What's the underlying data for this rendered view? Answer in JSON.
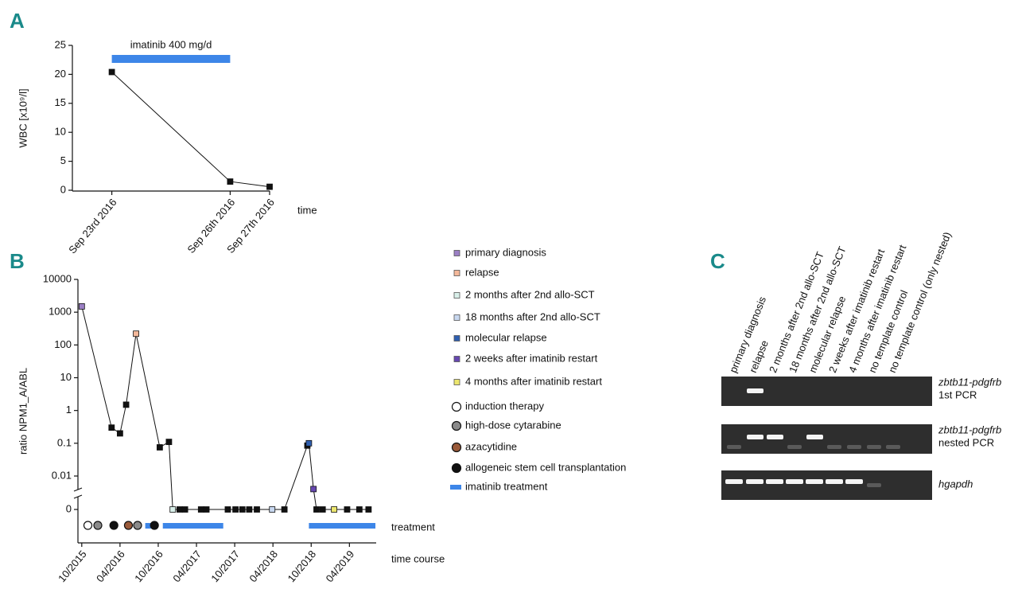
{
  "chart_data": [
    {
      "panel": "A",
      "type": "line",
      "ylabel": "WBC [x10⁹/l]",
      "xlabel": "time",
      "x": [
        "2016-09-23",
        "2016-09-26",
        "2016-09-27"
      ],
      "series": [
        {
          "color": "#111111",
          "values": [
            20.4,
            1.5,
            0.6
          ]
        }
      ],
      "xlim": [
        "2016-09-22",
        "2016-09-27"
      ],
      "xticks": [
        {
          "value": "2016-09-23",
          "label": "Sep 23rd 2016"
        },
        {
          "value": "2016-09-26",
          "label": "Sep 26th 2016"
        },
        {
          "value": "2016-09-27",
          "label": "Sep 27th 2016"
        }
      ],
      "ylim": [
        0,
        25
      ],
      "yticks": [
        0,
        5,
        10,
        15,
        20,
        25
      ],
      "treatment_bar": {
        "label": "imatinib 400 mg/d",
        "start": "2016-09-23",
        "end": "2016-09-26",
        "color": "#3d86e8"
      }
    },
    {
      "panel": "B",
      "type": "line",
      "yscale": "log",
      "ylabel": "ratio NPM1_A/ABL",
      "treatment_label": "treatment",
      "xlabel": "time course",
      "x": [
        2015.75,
        2016.14,
        2016.25,
        2016.33,
        2016.46,
        2016.77,
        2016.89,
        2016.94,
        2017.03,
        2017.1,
        2017.31,
        2017.38,
        2017.66,
        2017.76,
        2017.85,
        2017.94,
        2018.04,
        2018.24,
        2018.4,
        2018.7,
        2018.72,
        2018.78,
        2018.82,
        2018.9,
        2019.05,
        2019.22,
        2019.38,
        2019.5
      ],
      "series": [
        {
          "color": "#111111",
          "values": [
            1500,
            0.3,
            0.2,
            1.5,
            220,
            0.075,
            0.11,
            0,
            0,
            0,
            0,
            0,
            0,
            0,
            0,
            0,
            0,
            0,
            0,
            0.085,
            0.1,
            0.004,
            0,
            0,
            0,
            0,
            0,
            0
          ],
          "marker_colors": [
            "#9b7fc4",
            "#111",
            "#111",
            "#111",
            "#f4b89a",
            "#111",
            "#111",
            "#d9f0ea",
            "#111",
            "#111",
            "#111",
            "#111",
            "#111",
            "#111",
            "#111",
            "#111",
            "#111",
            "#c8d8f0",
            "#111",
            "#111",
            "#2f5fb0",
            "#6648b0",
            "#111",
            "#111",
            "#ece66e",
            "#111",
            "#111",
            "#111"
          ]
        }
      ],
      "xlim": [
        2015.7,
        2019.6
      ],
      "xticks": [
        {
          "value": 2015.75,
          "label": "10/2015"
        },
        {
          "value": 2016.25,
          "label": "04/2016"
        },
        {
          "value": 2016.75,
          "label": "10/2016"
        },
        {
          "value": 2017.25,
          "label": "04/2017"
        },
        {
          "value": 2017.75,
          "label": "10/2017"
        },
        {
          "value": 2018.25,
          "label": "04/2018"
        },
        {
          "value": 2018.75,
          "label": "10/2018"
        },
        {
          "value": 2019.25,
          "label": "04/2019"
        }
      ],
      "ylim": [
        0,
        10000
      ],
      "yticks": [
        0,
        0.01,
        0.1,
        1,
        10,
        100,
        1000,
        10000
      ],
      "legend": [
        {
          "label": "primary diagnosis",
          "marker": "square",
          "color": "#9b7fc4"
        },
        {
          "label": "relapse",
          "marker": "square",
          "color": "#f4b89a"
        },
        {
          "label": "2 months after 2nd allo-SCT",
          "marker": "square",
          "color": "#d9f0ea"
        },
        {
          "label": "18 months after 2nd allo-SCT",
          "marker": "square",
          "color": "#c8d8f0"
        },
        {
          "label": "molecular relapse",
          "marker": "square",
          "color": "#2f5fb0"
        },
        {
          "label": "2 weeks after imatinib restart",
          "marker": "square",
          "color": "#6648b0"
        },
        {
          "label": "4 months after imatinib restart",
          "marker": "square",
          "color": "#ece66e"
        },
        {
          "label": "induction therapy",
          "marker": "circle",
          "color": "#ffffff"
        },
        {
          "label": "high-dose cytarabine",
          "marker": "circle",
          "color": "#8a8a8a"
        },
        {
          "label": "azacytidine",
          "marker": "circle",
          "color": "#9a5a3a"
        },
        {
          "label": "allogeneic stem cell transplantation",
          "marker": "circle",
          "color": "#111111"
        },
        {
          "label": "imatinib treatment",
          "marker": "line",
          "color": "#3d86e8"
        }
      ],
      "treatment_events": [
        {
          "x": 2015.83,
          "item": 7
        },
        {
          "x": 2015.96,
          "item": 8
        },
        {
          "x": 2016.17,
          "item": 10
        },
        {
          "x": 2016.36,
          "item": 9
        },
        {
          "x": 2016.48,
          "item": 8
        },
        {
          "x": 2016.7,
          "item": 10
        }
      ],
      "treatment_bars": [
        {
          "start": 2016.58,
          "end": 2016.66,
          "item": 11
        },
        {
          "start": 2016.81,
          "end": 2017.6,
          "item": 11
        },
        {
          "start": 2018.72,
          "end": 2019.59,
          "item": 11
        }
      ]
    }
  ],
  "gel": {
    "panel": "C",
    "lanes": [
      "primary diagnosis",
      "relapse",
      "2 months after 2nd allo-SCT",
      "18 months after 2nd allo-SCT",
      "molecular relapse",
      "2 weeks after imatinib restart",
      "4 months after imatinib restart",
      "no template control",
      "no template control (only nested)"
    ],
    "rows": [
      {
        "gene": "zbtb11-pdgfrb",
        "label": "1st PCR"
      },
      {
        "gene": "zbtb11-pdgfrb",
        "label": "nested PCR"
      },
      {
        "gene": "hgapdh"
      }
    ]
  }
}
